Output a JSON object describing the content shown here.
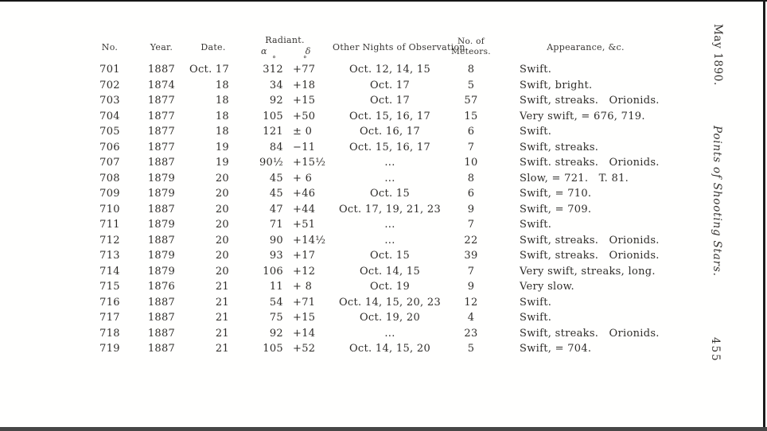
{
  "margin": {
    "journal_date": "May 1890.",
    "journal_title": "Points of Shooting Stars.",
    "page_number": "455"
  },
  "table": {
    "headers": {
      "no": "No.",
      "year": "Year.",
      "date": "Date.",
      "radiant": "Radiant.",
      "alpha": "α",
      "delta": "δ",
      "nights": "Other Nights of Observation.",
      "meteors": "No. of\nMeteors.",
      "appearance": "Appearance, &c."
    },
    "degree_symbol": "°",
    "rows": [
      {
        "no": "701",
        "year": "1887",
        "date": "Oct. 17",
        "a": "312",
        "d": "+77",
        "deg_marks": true,
        "nights": "Oct. 12, 14, 15",
        "meteors": "8",
        "appearance": "Swift."
      },
      {
        "no": "702",
        "year": "1874",
        "date": "18",
        "a": "34",
        "d": "+18",
        "nights": "Oct. 17",
        "meteors": "5",
        "appearance": "Swift, bright."
      },
      {
        "no": "703",
        "year": "1877",
        "date": "18",
        "a": "92",
        "d": "+15",
        "nights": "Oct. 17",
        "meteors": "57",
        "appearance": "Swift, streaks. Orionids."
      },
      {
        "no": "704",
        "year": "1877",
        "date": "18",
        "a": "105",
        "d": "+50",
        "nights": "Oct. 15, 16, 17",
        "meteors": "15",
        "appearance": "Very swift, = 676, 719."
      },
      {
        "no": "705",
        "year": "1877",
        "date": "18",
        "a": "121",
        "d": "± 0",
        "nights": "Oct. 16, 17",
        "meteors": "6",
        "appearance": "Swift."
      },
      {
        "no": "706",
        "year": "1877",
        "date": "19",
        "a": "84",
        "d": "−11",
        "nights": "Oct. 15, 16, 17",
        "meteors": "7",
        "appearance": "Swift, streaks."
      },
      {
        "no": "707",
        "year": "1887",
        "date": "19",
        "a": "90½",
        "d": "+15½",
        "nights": "...",
        "meteors": "10",
        "appearance": "Swift. streaks. Orionids."
      },
      {
        "no": "708",
        "year": "1879",
        "date": "20",
        "a": "45",
        "d": "+ 6",
        "nights": "...",
        "meteors": "8",
        "appearance": "Slow, = 721. T. 81."
      },
      {
        "no": "709",
        "year": "1879",
        "date": "20",
        "a": "45",
        "d": "+46",
        "nights": "Oct. 15",
        "meteors": "6",
        "appearance": "Swift, = 710."
      },
      {
        "no": "710",
        "year": "1887",
        "date": "20",
        "a": "47",
        "d": "+44",
        "nights": "Oct. 17, 19, 21, 23",
        "meteors": "9",
        "appearance": "Swift, = 709."
      },
      {
        "no": "711",
        "year": "1879",
        "date": "20",
        "a": "71",
        "d": "+51",
        "nights": "...",
        "meteors": "7",
        "appearance": "Swift."
      },
      {
        "no": "712",
        "year": "1887",
        "date": "20",
        "a": "90",
        "d": "+14½",
        "nights": "...",
        "meteors": "22",
        "appearance": "Swift, streaks. Orionids."
      },
      {
        "no": "713",
        "year": "1879",
        "date": "20",
        "a": "93",
        "d": "+17",
        "nights": "Oct. 15",
        "meteors": "39",
        "appearance": "Swift, streaks. Orionids."
      },
      {
        "no": "714",
        "year": "1879",
        "date": "20",
        "a": "106",
        "d": "+12",
        "nights": "Oct. 14, 15",
        "meteors": "7",
        "appearance": "Very swift, streaks, long."
      },
      {
        "no": "715",
        "year": "1876",
        "date": "21",
        "a": "11",
        "d": "+ 8",
        "nights": "Oct. 19",
        "meteors": "9",
        "appearance": "Very slow."
      },
      {
        "no": "716",
        "year": "1887",
        "date": "21",
        "a": "54",
        "d": "+71",
        "nights": "Oct. 14, 15, 20, 23",
        "meteors": "12",
        "appearance": "Swift."
      },
      {
        "no": "717",
        "year": "1887",
        "date": "21",
        "a": "75",
        "d": "+15",
        "nights": "Oct. 19, 20",
        "meteors": "4",
        "appearance": "Swift."
      },
      {
        "no": "718",
        "year": "1887",
        "date": "21",
        "a": "92",
        "d": "+14",
        "nights": "...",
        "meteors": "23",
        "appearance": "Swift, streaks. Orionids."
      },
      {
        "no": "719",
        "year": "1887",
        "date": "21",
        "a": "105",
        "d": "+52",
        "nights": "Oct. 14, 15, 20",
        "meteors": "5",
        "appearance": "Swift, = 704."
      }
    ]
  }
}
